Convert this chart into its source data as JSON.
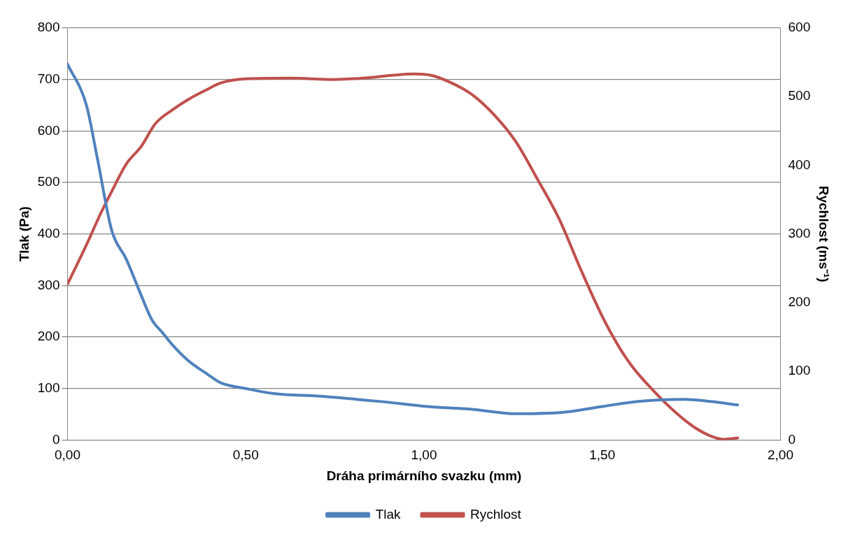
{
  "chart_data": {
    "type": "line",
    "xlabel": "Dráha primárního svazku (mm)",
    "ylabel": "Tlak (Pa)",
    "y2label": "Rychlost (ms⁻¹)",
    "xlim": [
      0,
      2
    ],
    "xticks": [
      {
        "value": 0,
        "label": "0,00"
      },
      {
        "value": 0.5,
        "label": "0,50"
      },
      {
        "value": 1,
        "label": "1,00"
      },
      {
        "value": 1.5,
        "label": "1,50"
      },
      {
        "value": 2,
        "label": "2,00"
      }
    ],
    "ylim": [
      0,
      800
    ],
    "yticks": [
      0,
      100,
      200,
      300,
      400,
      500,
      600,
      700,
      800
    ],
    "y2lim": [
      0,
      600
    ],
    "y2ticks": [
      0,
      100,
      200,
      300,
      400,
      500,
      600
    ],
    "grid": "y",
    "legend": "bottom",
    "marker": "none",
    "line_style": "solid",
    "series": [
      {
        "name": "Tlak",
        "color": "#4f81bd",
        "x": [
          0,
          0.053,
          0.084,
          0.124,
          0.165,
          0.206,
          0.237,
          0.267,
          0.298,
          0.339,
          0.39,
          0.43,
          0.5,
          0.58,
          0.71,
          0.81,
          0.89,
          1.01,
          1.13,
          1.26,
          1.38,
          1.5,
          1.6,
          1.73,
          1.79,
          1.88
        ],
        "values": [
          730,
          650,
          546,
          407,
          351,
          282,
          233,
          208,
          182,
          154,
          129,
          111,
          100,
          90,
          85,
          79,
          74,
          65,
          60,
          51,
          53,
          65,
          75,
          79,
          76,
          68
        ]
      },
      {
        "name": "Rychlost",
        "color": "#c0504d",
        "axis": "y2",
        "x": [
          0,
          0.053,
          0.094,
          0.124,
          0.165,
          0.206,
          0.247,
          0.298,
          0.339,
          0.39,
          0.43,
          0.5,
          0.624,
          0.747,
          0.829,
          0.91,
          0.971,
          1.02,
          1.073,
          1.135,
          1.196,
          1.257,
          1.318,
          1.38,
          1.44,
          1.5,
          1.543,
          1.584,
          1.645,
          1.706,
          1.757,
          1.808,
          1.839,
          1.88
        ],
        "values": [
          227,
          284,
          331,
          362,
          402,
          427,
          461,
          482,
          496,
          510,
          520,
          526,
          527,
          525,
          527,
          531,
          533,
          531,
          521,
          503,
          474,
          435,
          380,
          321,
          248,
          180,
          139,
          107,
          71,
          40,
          19,
          5,
          1,
          3
        ]
      }
    ]
  }
}
